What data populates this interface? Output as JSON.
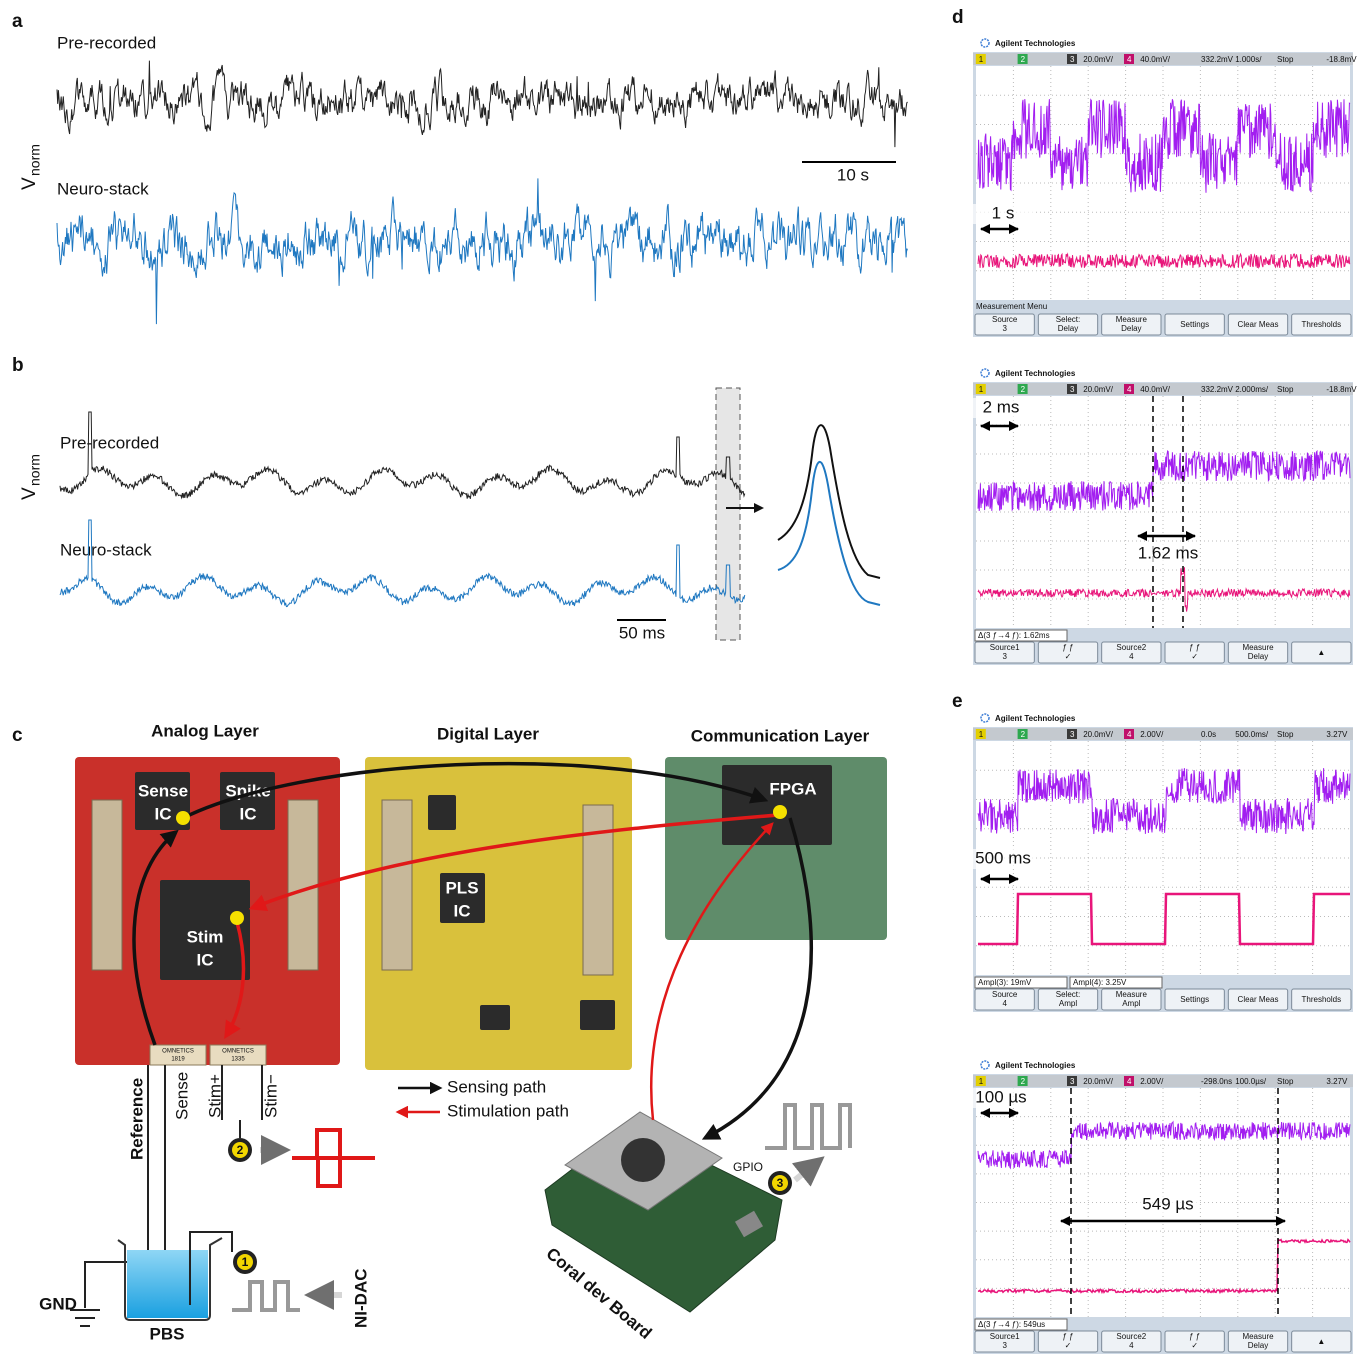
{
  "panels": {
    "a": {
      "label": "a",
      "y_label": "V",
      "y_label_sub": "norm",
      "traces": [
        "Pre-recorded",
        "Neuro-stack"
      ],
      "scale_bar": "10 s"
    },
    "b": {
      "label": "b",
      "y_label": "V",
      "y_label_sub": "norm",
      "traces": [
        "Pre-recorded",
        "Neuro-stack"
      ],
      "scale_bar": "50 ms"
    },
    "c": {
      "label": "c",
      "layers": [
        "Analog Layer",
        "Digital Layer",
        "Communication Layer"
      ],
      "chips": [
        [
          "Sense",
          "IC"
        ],
        [
          "Spike",
          "IC"
        ],
        [
          "Stim",
          "IC"
        ],
        [
          "PLS",
          "IC"
        ],
        [
          "FPGA"
        ]
      ],
      "connectors": [
        [
          "OMNETICS",
          "1819"
        ],
        [
          "OMNETICS",
          "1335"
        ]
      ],
      "wires": [
        "Reference",
        "Sense",
        "Stim+",
        "Stim−"
      ],
      "ground": "GND",
      "solution": "PBS",
      "dac": "NI-DAC",
      "board": "Coral dev Board",
      "gpio": "GPIO",
      "steps": [
        "1",
        "2",
        "3"
      ],
      "legend": [
        "Sensing path",
        "Stimulation path"
      ]
    },
    "d": {
      "label": "d",
      "scopes": [
        {
          "brand": "Agilent Technologies",
          "status": [
            "1",
            "2",
            "3",
            "20.0mV/",
            "4",
            "40.0mV/",
            "332.2mV",
            "1.000s/",
            "Stop",
            "-18.8mV"
          ],
          "annotations": [
            "1 s"
          ],
          "menu_title": "Measurement Menu",
          "buttons": [
            [
              "Source",
              "3"
            ],
            [
              "Select:",
              "Delay"
            ],
            [
              "Measure",
              "Delay"
            ],
            [
              "Settings"
            ],
            [
              "Clear Meas"
            ],
            [
              "Thresholds"
            ]
          ]
        },
        {
          "brand": "Agilent Technologies",
          "status": [
            "1",
            "2",
            "3",
            "20.0mV/",
            "4",
            "40.0mV/",
            "332.2mV",
            "2.000ms/",
            "Stop",
            "-18.8mV"
          ],
          "annotations": [
            "2 ms",
            "1.62 ms"
          ],
          "measurements": [
            "Δ(3 ƒ→4 ƒ): 1.62ms"
          ],
          "buttons": [
            [
              "Source1",
              "3"
            ],
            [
              "ƒ   ƒ",
              "✓"
            ],
            [
              "Source2",
              "4"
            ],
            [
              "ƒ   ƒ",
              "✓"
            ],
            [
              "Measure",
              "Delay"
            ],
            [
              "▲"
            ]
          ]
        }
      ]
    },
    "e": {
      "label": "e",
      "scopes": [
        {
          "brand": "Agilent Technologies",
          "status": [
            "1",
            "2",
            "3",
            "20.0mV/",
            "4",
            "2.00V/",
            "0.0s",
            "500.0ms/",
            "Stop",
            "3.27V"
          ],
          "annotations": [
            "500 ms"
          ],
          "measurements": [
            "Ampl(3): 19mV",
            "Ampl(4): 3.25V"
          ],
          "buttons": [
            [
              "Source",
              "4"
            ],
            [
              "Select:",
              "Ampl"
            ],
            [
              "Measure",
              "Ampl"
            ],
            [
              "Settings"
            ],
            [
              "Clear Meas"
            ],
            [
              "Thresholds"
            ]
          ]
        },
        {
          "brand": "Agilent Technologies",
          "status": [
            "1",
            "2",
            "3",
            "20.0mV/",
            "4",
            "2.00V/",
            "-298.0ns",
            "100.0µs/",
            "Stop",
            "3.27V"
          ],
          "annotations": [
            "100 µs",
            "549 µs"
          ],
          "measurements": [
            "Δ(3 ƒ→4 ƒ): 549us"
          ],
          "buttons": [
            [
              "Source1",
              "3"
            ],
            [
              "ƒ   ƒ",
              "✓"
            ],
            [
              "Source2",
              "4"
            ],
            [
              "ƒ   ƒ",
              "✓"
            ],
            [
              "Measure",
              "Delay"
            ],
            [
              "▲"
            ]
          ]
        }
      ]
    }
  }
}
